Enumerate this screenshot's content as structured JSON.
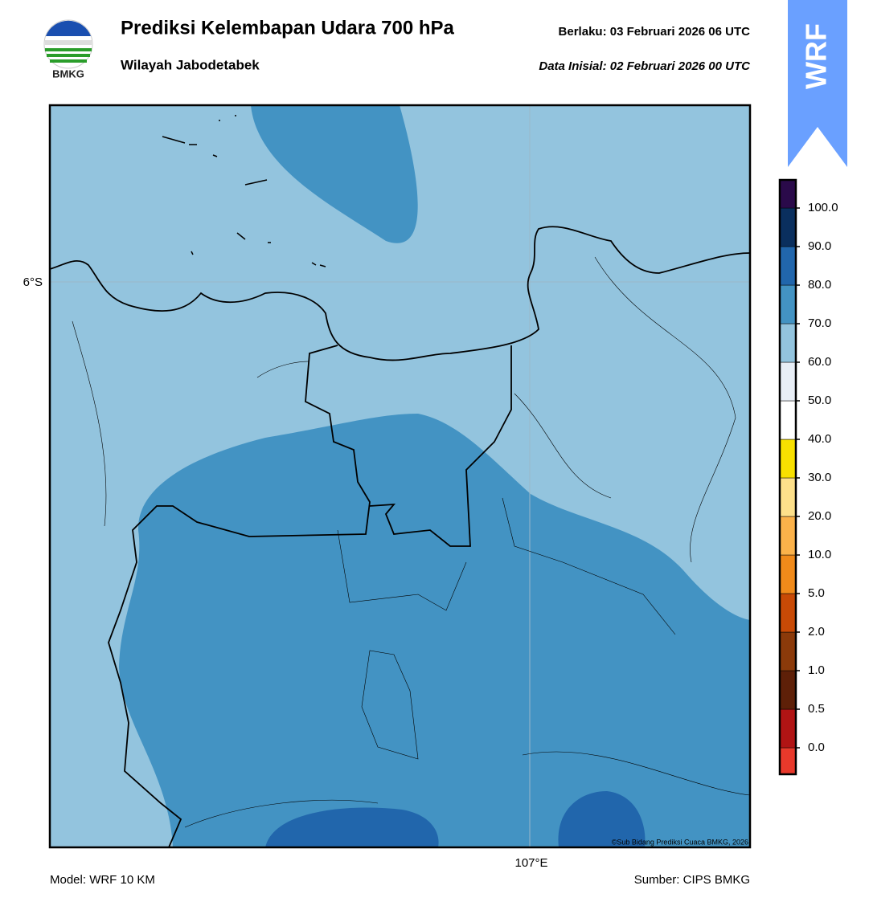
{
  "header": {
    "title": "Prediksi Kelembapan Udara 700 hPa",
    "subtitle": "Wilayah Jabodetabek",
    "valid": "Berlaku:  03 Februari 2026 06 UTC",
    "initial": "Data Inisial:  02 Februari 2026 00 UTC",
    "logo_text": "BMKG",
    "badge": "WRF"
  },
  "map": {
    "lat_label": "6°S",
    "lon_label": "107°E",
    "credit": "©Sub Bidang Prediksi Cuaca BMKG, 2026"
  },
  "colorbar": {
    "labels": [
      "0.0",
      "0.5",
      "1.0",
      "2.0",
      "5.0",
      "10.0",
      "20.0",
      "30.0",
      "40.0",
      "50.0",
      "60.0",
      "70.0",
      "80.0",
      "90.0",
      "100.0"
    ],
    "colors": [
      "#e8392b",
      "#b01414",
      "#5e2008",
      "#8b3a0a",
      "#c84a06",
      "#f08a1a",
      "#fbb24a",
      "#fde08a",
      "#f8e000",
      "#ffffff",
      "#e8eef6",
      "#93c4de",
      "#4393c3",
      "#2166ac",
      "#0a2f5e",
      "#2a0a4a"
    ]
  },
  "footer": {
    "model": "Model: WRF 10 KM",
    "source": "Sumber: CIPS BMKG"
  }
}
